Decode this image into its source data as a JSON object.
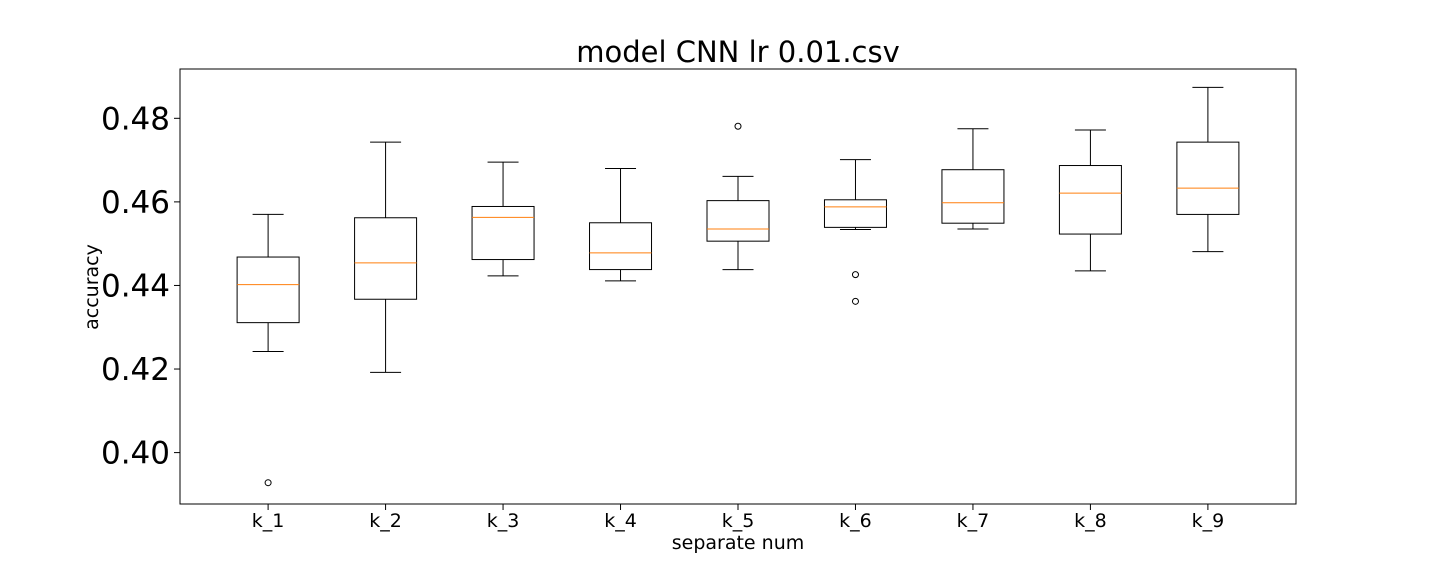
{
  "chart_data": {
    "type": "box",
    "title": "model CNN lr 0.01.csv",
    "xlabel": "separate num",
    "ylabel": "accuracy",
    "ylim": [
      0.3877,
      0.4918
    ],
    "yticks": [
      0.4,
      0.42,
      0.44,
      0.46,
      0.48
    ],
    "ytick_labels": [
      "0.40",
      "0.42",
      "0.44",
      "0.46",
      "0.48"
    ],
    "grid": false,
    "colors": {
      "box": "#000000",
      "median": "#ff7f0e",
      "flier": "#000000"
    },
    "boxes": [
      {
        "label": "k_1",
        "whisker_low": 0.4242,
        "q1": 0.4311,
        "median": 0.4402,
        "q3": 0.4468,
        "whisker_high": 0.457,
        "fliers": [
          0.3928
        ]
      },
      {
        "label": "k_2",
        "whisker_low": 0.4192,
        "q1": 0.4367,
        "median": 0.4454,
        "q3": 0.4562,
        "whisker_high": 0.4743,
        "fliers": []
      },
      {
        "label": "k_3",
        "whisker_low": 0.4423,
        "q1": 0.4462,
        "median": 0.4563,
        "q3": 0.4589,
        "whisker_high": 0.4695,
        "fliers": []
      },
      {
        "label": "k_4",
        "whisker_low": 0.4411,
        "q1": 0.4438,
        "median": 0.4478,
        "q3": 0.455,
        "whisker_high": 0.468,
        "fliers": []
      },
      {
        "label": "k_5",
        "whisker_low": 0.4438,
        "q1": 0.4506,
        "median": 0.4535,
        "q3": 0.4603,
        "whisker_high": 0.4661,
        "fliers": [
          0.4781
        ]
      },
      {
        "label": "k_6",
        "whisker_low": 0.4534,
        "q1": 0.4539,
        "median": 0.4588,
        "q3": 0.4605,
        "whisker_high": 0.4701,
        "fliers": [
          0.4426,
          0.4362
        ]
      },
      {
        "label": "k_7",
        "whisker_low": 0.4535,
        "q1": 0.4549,
        "median": 0.4598,
        "q3": 0.4677,
        "whisker_high": 0.4775,
        "fliers": []
      },
      {
        "label": "k_8",
        "whisker_low": 0.4435,
        "q1": 0.4523,
        "median": 0.4621,
        "q3": 0.4687,
        "whisker_high": 0.4772,
        "fliers": []
      },
      {
        "label": "k_9",
        "whisker_low": 0.4481,
        "q1": 0.457,
        "median": 0.4633,
        "q3": 0.4743,
        "whisker_high": 0.4874,
        "fliers": []
      }
    ]
  }
}
